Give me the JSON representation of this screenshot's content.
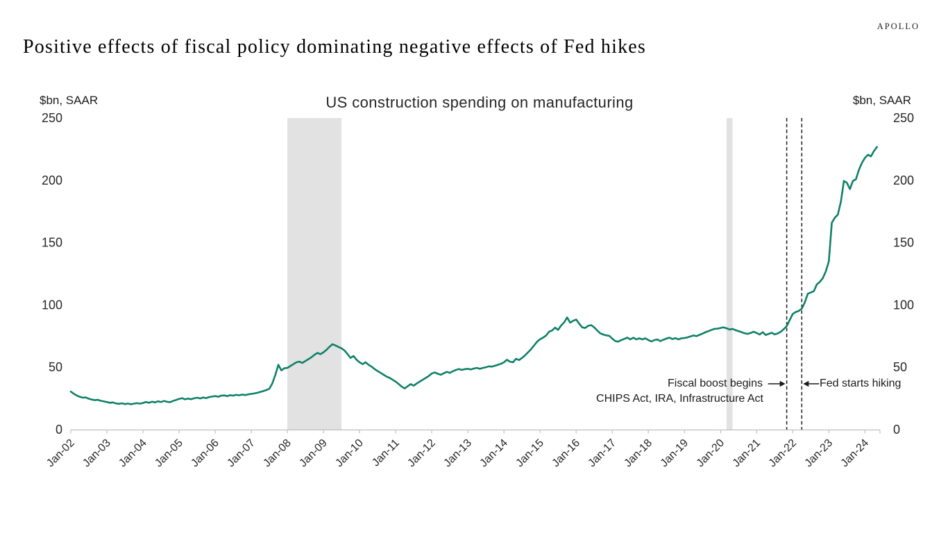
{
  "logo": "APOLLO",
  "title": "Positive effects of fiscal policy dominating negative effects of Fed hikes",
  "chart_data": {
    "type": "line",
    "title": "US construction spending on manufacturing",
    "y_axis_label_left": "$bn, SAAR",
    "y_axis_label_right": "$bn, SAAR",
    "ylim": [
      0,
      250
    ],
    "y_ticks": [
      0,
      50,
      100,
      150,
      200,
      250
    ],
    "x_start_month": "2002-01",
    "x_tick_interval_months": 12,
    "x_tick_labels": [
      "Jan-02",
      "Jan-03",
      "Jan-04",
      "Jan-05",
      "Jan-06",
      "Jan-07",
      "Jan-08",
      "Jan-09",
      "Jan-10",
      "Jan-11",
      "Jan-12",
      "Jan-13",
      "Jan-14",
      "Jan-15",
      "Jan-16",
      "Jan-17",
      "Jan-18",
      "Jan-19",
      "Jan-20",
      "Jan-21",
      "Jan-22",
      "Jan-23",
      "Jan-24"
    ],
    "series": [
      {
        "name": "US construction spending on manufacturing",
        "color": "#0e8068",
        "monthly_values": [
          30.5,
          28.8,
          27.3,
          26.3,
          25.6,
          25.8,
          24.8,
          24.1,
          23.6,
          23.9,
          23.1,
          22.6,
          22.1,
          21.5,
          21.8,
          21.0,
          20.7,
          21.1,
          20.5,
          20.9,
          20.3,
          20.8,
          21.2,
          20.8,
          21.4,
          22.1,
          21.5,
          22.4,
          21.8,
          22.7,
          22.1,
          23.0,
          22.3,
          22.0,
          23.0,
          23.8,
          24.6,
          25.2,
          24.3,
          24.9,
          24.4,
          25.1,
          25.6,
          25.0,
          25.7,
          25.3,
          26.1,
          26.5,
          26.9,
          26.4,
          27.2,
          27.4,
          26.9,
          27.6,
          27.2,
          27.9,
          27.5,
          28.1,
          27.7,
          28.3,
          28.6,
          29.0,
          29.5,
          30.2,
          30.9,
          31.7,
          32.8,
          37.0,
          44.0,
          52.0,
          47.5,
          49.2,
          49.5,
          51.0,
          52.5,
          54.0,
          54.5,
          53.5,
          55.0,
          56.5,
          58.0,
          60.0,
          61.5,
          60.5,
          62.0,
          64.0,
          66.5,
          68.5,
          67.5,
          66.3,
          65.2,
          63.5,
          60.5,
          57.5,
          59.0,
          56.0,
          54.0,
          52.5,
          54.0,
          52.0,
          50.5,
          48.5,
          47.0,
          45.5,
          44.0,
          42.5,
          41.5,
          40.0,
          38.5,
          36.5,
          34.5,
          33.0,
          34.8,
          36.5,
          35.2,
          37.0,
          38.5,
          40.0,
          41.5,
          43.0,
          45.0,
          45.8,
          44.8,
          44.0,
          45.2,
          46.3,
          45.5,
          46.8,
          47.8,
          48.6,
          47.9,
          48.5,
          48.8,
          48.2,
          49.0,
          49.5,
          48.8,
          49.5,
          50.0,
          50.8,
          50.5,
          51.2,
          52.0,
          52.8,
          54.0,
          56.0,
          54.5,
          54.0,
          56.8,
          55.8,
          57.5,
          59.5,
          62.0,
          64.5,
          67.5,
          70.5,
          72.5,
          73.8,
          75.5,
          78.5,
          79.5,
          81.8,
          80.0,
          83.5,
          86.0,
          90.0,
          85.8,
          87.3,
          88.3,
          85.0,
          82.0,
          81.5,
          83.3,
          83.8,
          82.0,
          79.5,
          77.2,
          76.3,
          75.6,
          75.2,
          73.0,
          71.0,
          70.6,
          71.8,
          72.8,
          73.8,
          72.4,
          73.7,
          72.4,
          73.2,
          72.4,
          73.2,
          71.9,
          70.7,
          71.8,
          72.3,
          71.0,
          72.1,
          73.0,
          73.8,
          72.6,
          73.4,
          72.4,
          73.2,
          73.5,
          74.0,
          74.8,
          75.5,
          75.0,
          76.0,
          77.0,
          78.2,
          79.0,
          80.0,
          80.8,
          81.0,
          81.5,
          82.0,
          81.3,
          80.3,
          80.8,
          79.8,
          79.0,
          78.2,
          77.3,
          76.8,
          77.5,
          78.5,
          77.5,
          76.3,
          78.2,
          75.9,
          76.8,
          77.7,
          76.4,
          77.1,
          78.5,
          80.5,
          83.0,
          88.0,
          92.8,
          94.3,
          95.2,
          97.0,
          102.0,
          109.0,
          110.0,
          111.0,
          116.5,
          118.5,
          121.5,
          127.0,
          135.0,
          166.0,
          170.0,
          172.5,
          183.0,
          199.5,
          198.0,
          193.0,
          199.5,
          200.8,
          208.5,
          214.0,
          218.0,
          220.5,
          219.2,
          223.5,
          226.8
        ]
      }
    ],
    "shaded_regions": [
      {
        "name": "recession-2008",
        "start": "2008-01",
        "end": "2009-07",
        "color": "#e2e2e2"
      },
      {
        "name": "recession-2020",
        "start": "2020-03",
        "end": "2020-05",
        "color": "#e2e2e2"
      }
    ],
    "event_lines": [
      {
        "month": "2021-11",
        "style": "dashed",
        "color": "#1a1a1a"
      },
      {
        "month": "2022-04",
        "style": "dashed",
        "color": "#1a1a1a"
      }
    ],
    "annotations": {
      "fiscal_line1": "Fiscal boost begins",
      "fiscal_line2": "CHIPS Act, IRA, Infrastructure Act",
      "fed": "Fed starts hiking"
    },
    "axis_color": "#bfbfbf",
    "tick_label_color": "#262626"
  }
}
